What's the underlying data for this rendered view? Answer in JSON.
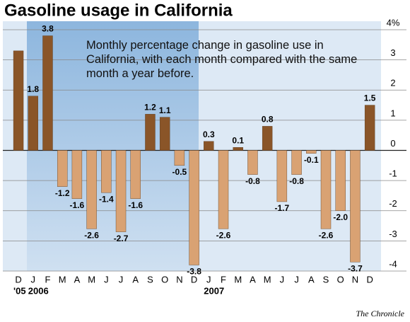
{
  "chart_data": {
    "type": "bar",
    "title": "Gasoline usage in California",
    "annotation": "Monthly percentage change in gasoline use in California, with each month compared with the same month a year before.",
    "source": "The Chronicle",
    "categories": [
      "D",
      "J",
      "F",
      "M",
      "A",
      "M",
      "J",
      "J",
      "A",
      "S",
      "O",
      "N",
      "D",
      "J",
      "F",
      "M",
      "A",
      "M",
      "J",
      "J",
      "A",
      "S",
      "O",
      "N",
      "D"
    ],
    "year_labels": [
      "'05",
      "2006",
      null,
      null,
      null,
      null,
      null,
      null,
      null,
      null,
      null,
      null,
      null,
      "2007",
      null,
      null,
      null,
      null,
      null,
      null,
      null,
      null,
      null,
      null,
      null
    ],
    "values": [
      3.3,
      1.8,
      3.8,
      -1.2,
      -1.6,
      -2.6,
      -1.4,
      -2.7,
      -1.6,
      1.2,
      1.1,
      -0.5,
      -3.8,
      0.3,
      -2.6,
      0.1,
      -0.8,
      0.8,
      -1.7,
      -0.8,
      -0.1,
      -2.6,
      -2.0,
      -3.7,
      1.5
    ],
    "value_labels": [
      null,
      "1.8",
      "3.8",
      "-1.2",
      "-1.6",
      "-2.6",
      "-1.4",
      "-2.7",
      "-1.6",
      "1.2",
      "1.1",
      "-0.5",
      "-3.8",
      "0.3",
      "-2.6",
      "0.1",
      "-0.8",
      "0.8",
      "-1.7",
      "-0.8",
      "-0.1",
      "-2.6",
      "-2.0",
      "-3.7",
      "1.5"
    ],
    "color_positive": "#8a5528",
    "color_negative": "#d9a273",
    "ylim": [
      -4,
      4
    ],
    "yticks": [
      {
        "value": 4,
        "label": "4%"
      },
      3,
      2,
      1,
      0,
      -1,
      -2,
      -3,
      -4
    ],
    "grid": true
  }
}
